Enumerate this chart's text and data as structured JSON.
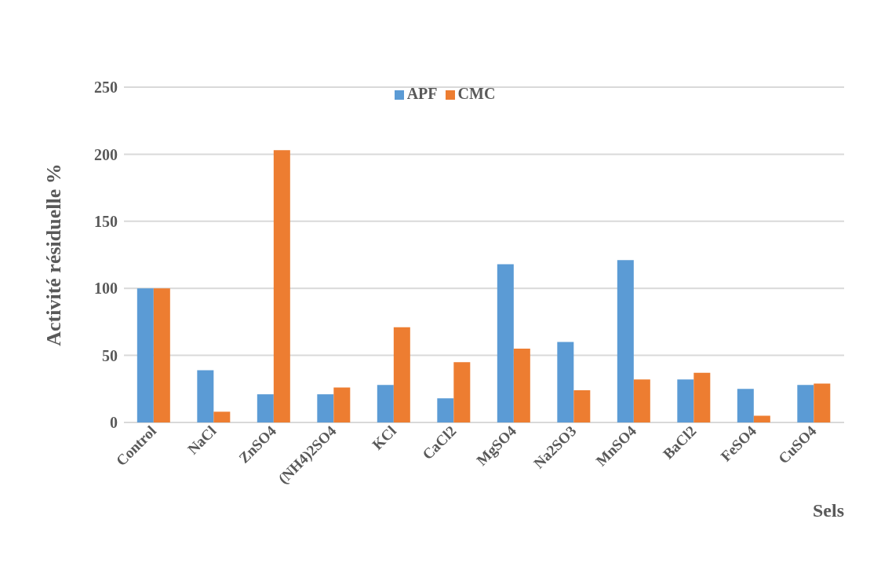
{
  "chart_data": {
    "type": "bar",
    "xlabel": "Sels",
    "ylabel": "Activité résiduelle %",
    "categories": [
      "Control",
      "NaCl",
      "ZnSO4",
      "(NH4)2SO4",
      "KCl",
      "CaCl2",
      "MgSO4",
      "Na2SO3",
      "MnSO4",
      "BaCl2",
      "FeSO4",
      "CuSO4"
    ],
    "series": [
      {
        "name": "APF",
        "color": "#5b9bd5",
        "values": [
          100,
          39,
          21,
          21,
          28,
          18,
          118,
          60,
          121,
          32,
          25,
          28
        ]
      },
      {
        "name": "CMC",
        "color": "#ed7d31",
        "values": [
          100,
          8,
          203,
          26,
          71,
          45,
          55,
          24,
          32,
          37,
          5,
          29
        ]
      }
    ],
    "ylim": [
      0,
      250
    ],
    "yticks": [
      0,
      50,
      100,
      150,
      200,
      250
    ],
    "grid": "y",
    "legend": "top"
  }
}
